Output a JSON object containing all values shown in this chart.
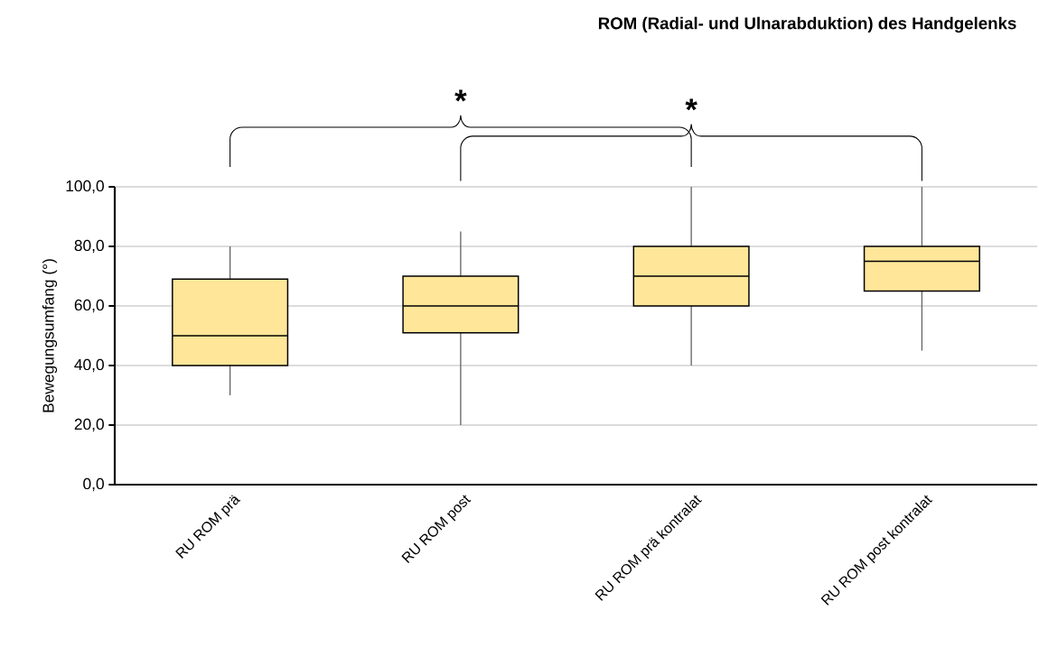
{
  "chart_data": {
    "type": "box",
    "title": "ROM (Radial- und Ulnarabduktion) des Handgelenks",
    "ylabel": "Bewegungsumfang (°)",
    "categories": [
      "RU ROM prä",
      "RU ROM post",
      "RU ROM prä kontralat",
      "RU ROM post kontralat"
    ],
    "color": "#ffe699",
    "boxes": [
      {
        "low": 30,
        "q1": 40,
        "median": 50,
        "q3": 69,
        "high": 80
      },
      {
        "low": 20,
        "q1": 51,
        "median": 60,
        "q3": 70,
        "high": 85
      },
      {
        "low": 40,
        "q1": 60,
        "median": 70,
        "q3": 80,
        "high": 100
      },
      {
        "low": 45,
        "q1": 65,
        "median": 75,
        "q3": 80,
        "high": 100
      }
    ],
    "ylim": [
      0,
      100
    ],
    "yticks": [
      {
        "value": 0,
        "label": "0,0"
      },
      {
        "value": 20,
        "label": "20,0"
      },
      {
        "value": 40,
        "label": "40,0"
      },
      {
        "value": 60,
        "label": "60,0"
      },
      {
        "value": 80,
        "label": "80,0"
      },
      {
        "value": 100,
        "label": "100,0"
      }
    ],
    "grid": "y",
    "annotations": [
      "*",
      "*"
    ]
  }
}
